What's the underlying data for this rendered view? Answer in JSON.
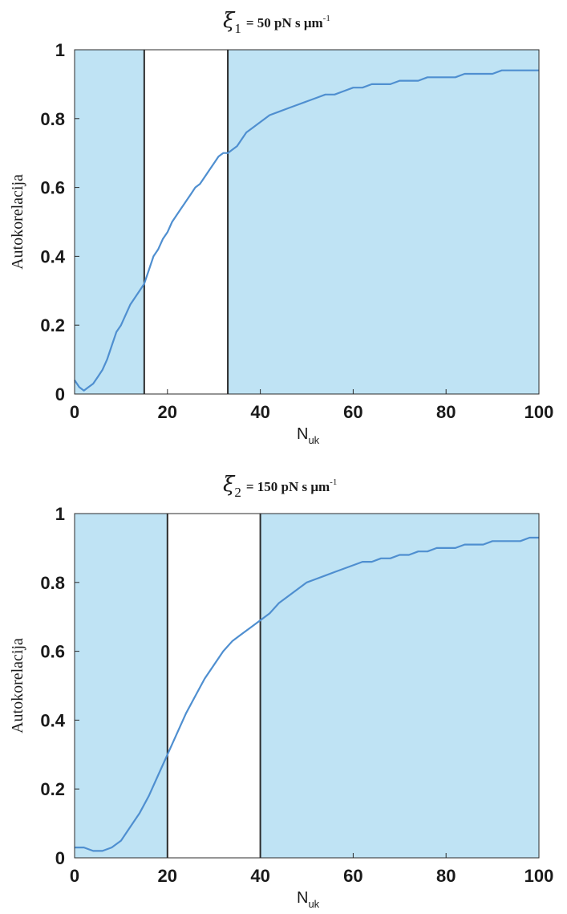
{
  "colors": {
    "plot_background": "#bfe3f4",
    "highlight_band": "#ffffff",
    "curve": "#4f8fd0",
    "frame": "#2b2b2b"
  },
  "chart_data": [
    {
      "type": "line",
      "title": {
        "symbol": "ξ",
        "subscript": "1",
        "text": "= 50 pN s μm",
        "superscript": "-1"
      },
      "xlabel": {
        "main": "N",
        "sub": "uk"
      },
      "ylabel": "Autokorelacija",
      "xlim": [
        0,
        100
      ],
      "ylim": [
        0,
        1
      ],
      "xticks": [
        0,
        20,
        40,
        60,
        80,
        100
      ],
      "yticks": [
        0,
        0.2,
        0.4,
        0.6,
        0.8,
        1
      ],
      "ytick_labels": [
        "0",
        "0.2",
        "0.4",
        "0.6",
        "0.8",
        "1"
      ],
      "xtick_labels": [
        "0",
        "20",
        "40",
        "60",
        "80",
        "100"
      ],
      "highlight_band": [
        15,
        33
      ],
      "series": [
        {
          "x": [
            0,
            1,
            2,
            3,
            4,
            5,
            6,
            7,
            8,
            9,
            10,
            11,
            12,
            13,
            14,
            15,
            16,
            17,
            18,
            19,
            20,
            21,
            22,
            23,
            24,
            25,
            26,
            27,
            28,
            29,
            30,
            31,
            32,
            33,
            34,
            35,
            36,
            37,
            38,
            40,
            42,
            44,
            46,
            48,
            50,
            52,
            54,
            56,
            58,
            60,
            62,
            64,
            66,
            68,
            70,
            72,
            74,
            76,
            78,
            80,
            82,
            84,
            86,
            88,
            90,
            92,
            94,
            96,
            98,
            100
          ],
          "y": [
            0.04,
            0.02,
            0.01,
            0.02,
            0.03,
            0.05,
            0.07,
            0.1,
            0.14,
            0.18,
            0.2,
            0.23,
            0.26,
            0.28,
            0.3,
            0.32,
            0.36,
            0.4,
            0.42,
            0.45,
            0.47,
            0.5,
            0.52,
            0.54,
            0.56,
            0.58,
            0.6,
            0.61,
            0.63,
            0.65,
            0.67,
            0.69,
            0.7,
            0.7,
            0.71,
            0.72,
            0.74,
            0.76,
            0.77,
            0.79,
            0.81,
            0.82,
            0.83,
            0.84,
            0.85,
            0.86,
            0.87,
            0.87,
            0.88,
            0.89,
            0.89,
            0.9,
            0.9,
            0.9,
            0.91,
            0.91,
            0.91,
            0.92,
            0.92,
            0.92,
            0.92,
            0.93,
            0.93,
            0.93,
            0.93,
            0.94,
            0.94,
            0.94,
            0.94,
            0.94
          ]
        }
      ]
    },
    {
      "type": "line",
      "title": {
        "symbol": "ξ",
        "subscript": "2",
        "text": "= 150 pN s μm",
        "superscript": "-1"
      },
      "xlabel": {
        "main": "N",
        "sub": "uk"
      },
      "ylabel": "Autokorelacija",
      "xlim": [
        0,
        100
      ],
      "ylim": [
        0,
        1
      ],
      "xticks": [
        0,
        20,
        40,
        60,
        80,
        100
      ],
      "yticks": [
        0,
        0.2,
        0.4,
        0.6,
        0.8,
        1
      ],
      "ytick_labels": [
        "0",
        "0.2",
        "0.4",
        "0.6",
        "0.8",
        "1"
      ],
      "xtick_labels": [
        "0",
        "20",
        "40",
        "60",
        "80",
        "100"
      ],
      "highlight_band": [
        20,
        40
      ],
      "series": [
        {
          "x": [
            0,
            2,
            4,
            6,
            8,
            10,
            12,
            14,
            16,
            18,
            20,
            22,
            24,
            26,
            28,
            30,
            32,
            34,
            36,
            38,
            40,
            42,
            44,
            46,
            48,
            50,
            52,
            54,
            56,
            58,
            60,
            62,
            64,
            66,
            68,
            70,
            72,
            74,
            76,
            78,
            80,
            82,
            84,
            86,
            88,
            90,
            92,
            94,
            96,
            98,
            100
          ],
          "y": [
            0.03,
            0.03,
            0.02,
            0.02,
            0.03,
            0.05,
            0.09,
            0.13,
            0.18,
            0.24,
            0.3,
            0.36,
            0.42,
            0.47,
            0.52,
            0.56,
            0.6,
            0.63,
            0.65,
            0.67,
            0.69,
            0.71,
            0.74,
            0.76,
            0.78,
            0.8,
            0.81,
            0.82,
            0.83,
            0.84,
            0.85,
            0.86,
            0.86,
            0.87,
            0.87,
            0.88,
            0.88,
            0.89,
            0.89,
            0.9,
            0.9,
            0.9,
            0.91,
            0.91,
            0.91,
            0.92,
            0.92,
            0.92,
            0.92,
            0.93,
            0.93
          ]
        }
      ]
    }
  ]
}
